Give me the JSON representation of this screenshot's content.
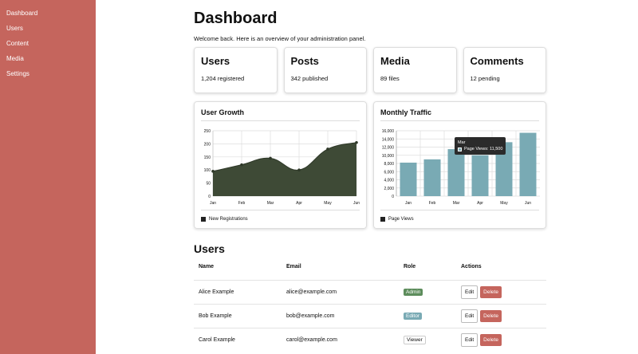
{
  "sidebar": {
    "items": [
      {
        "label": "Dashboard"
      },
      {
        "label": "Users"
      },
      {
        "label": "Content"
      },
      {
        "label": "Media"
      },
      {
        "label": "Settings"
      }
    ]
  },
  "header": {
    "title": "Dashboard",
    "welcome": "Welcome back. Here is an overview of your administration panel."
  },
  "stats": [
    {
      "title": "Users",
      "value": "1,204 registered"
    },
    {
      "title": "Posts",
      "value": "342 published"
    },
    {
      "title": "Media",
      "value": "89 files"
    },
    {
      "title": "Comments",
      "value": "12 pending"
    }
  ],
  "charts": {
    "user_growth": {
      "title": "User Growth",
      "legend": "New Registrations",
      "color": "#3e4a36"
    },
    "traffic": {
      "title": "Monthly Traffic",
      "legend": "Page Views",
      "color": "#79aab4",
      "tooltip": {
        "title": "Mar",
        "text": "Page Views: 11,500"
      }
    }
  },
  "chart_data": [
    {
      "type": "area",
      "title": "User Growth",
      "categories": [
        "Jan",
        "Feb",
        "Mar",
        "Apr",
        "May",
        "Jun"
      ],
      "series": [
        {
          "name": "New Registrations",
          "values": [
            95,
            120,
            145,
            100,
            180,
            205
          ]
        }
      ],
      "ylim": [
        0,
        250
      ],
      "yticks": [
        "0",
        "50",
        "100",
        "150",
        "200",
        "250"
      ],
      "grid": true,
      "legend": "bottom-left"
    },
    {
      "type": "bar",
      "title": "Monthly Traffic",
      "categories": [
        "Jan",
        "Feb",
        "Mar",
        "Apr",
        "May",
        "Jun"
      ],
      "series": [
        {
          "name": "Page Views",
          "values": [
            8200,
            9000,
            11500,
            10000,
            13200,
            15500
          ]
        }
      ],
      "ylim": [
        0,
        16000
      ],
      "yticks": [
        "0",
        "2,000",
        "4,000",
        "6,000",
        "8,000",
        "10,000",
        "12,000",
        "14,000",
        "16,000"
      ],
      "grid": true,
      "legend": "bottom-left"
    }
  ],
  "users_section": {
    "title": "Users",
    "columns": [
      "Name",
      "Email",
      "Role",
      "Actions"
    ],
    "rows": [
      {
        "name": "Alice Example",
        "email": "alice@example.com",
        "role": "Admin"
      },
      {
        "name": "Bob Example",
        "email": "bob@example.com",
        "role": "Editor"
      },
      {
        "name": "Carol Example",
        "email": "carol@example.com",
        "role": "Viewer"
      }
    ],
    "edit_label": "Edit",
    "delete_label": "Delete"
  },
  "colors": {
    "sidebar": "#c5655d",
    "admin": "#5d8d5c",
    "editor": "#79aab4",
    "delete": "#c5655d"
  }
}
